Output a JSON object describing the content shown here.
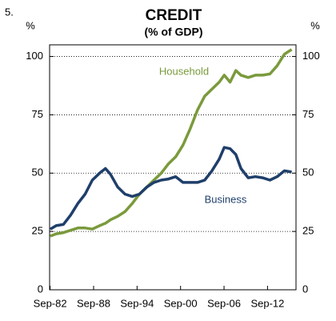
{
  "figure_number": "5.",
  "chart_data": {
    "type": "line",
    "title": "CREDIT",
    "subtitle": "(% of GDP)",
    "y_label": "%",
    "x": [
      1982.7,
      1983.5,
      1984.5,
      1985.5,
      1986.5,
      1987.5,
      1988.5,
      1989.5,
      1990.3,
      1991,
      1992,
      1993,
      1994,
      1995,
      1996,
      1997,
      1998,
      1999,
      2000,
      2001,
      2002,
      2003,
      2004,
      2005,
      2006,
      2006.7,
      2007.5,
      2008.3,
      2009,
      2010,
      2011,
      2012,
      2013,
      2014,
      2015,
      2016
    ],
    "series": [
      {
        "name": "Household",
        "color": "#7a9a3c",
        "values": [
          23,
          24,
          24.5,
          25.5,
          26.5,
          26.5,
          26,
          27.5,
          28.5,
          30,
          31.5,
          33.5,
          37,
          41,
          44,
          47,
          50,
          54,
          57,
          62,
          69,
          77,
          83,
          86,
          89,
          92,
          89,
          94,
          92,
          91,
          92,
          92,
          92.5,
          96,
          101,
          103
        ]
      },
      {
        "name": "Business",
        "color": "#1f3f6a",
        "values": [
          26,
          27.5,
          28,
          32,
          37,
          41,
          47,
          50,
          52,
          49.5,
          44,
          41,
          40,
          41,
          44,
          46,
          47,
          47.5,
          48.5,
          46,
          46,
          46,
          47,
          51,
          56,
          61,
          60.5,
          58,
          52,
          48,
          48.5,
          48,
          47,
          48.5,
          51,
          50.5
        ]
      }
    ],
    "xlim": [
      1982.6,
      2016.6
    ],
    "xticks": [
      {
        "value": 1982.67,
        "label": "Sep-82"
      },
      {
        "value": 1988.67,
        "label": "Sep-88"
      },
      {
        "value": 1994.67,
        "label": "Sep-94"
      },
      {
        "value": 2000.67,
        "label": "Sep-00"
      },
      {
        "value": 2006.67,
        "label": "Sep-06"
      },
      {
        "value": 2012.67,
        "label": "Sep-12"
      }
    ],
    "ylim": [
      0,
      105
    ],
    "yticks": [
      0,
      25,
      50,
      75,
      100
    ],
    "grid": true
  }
}
